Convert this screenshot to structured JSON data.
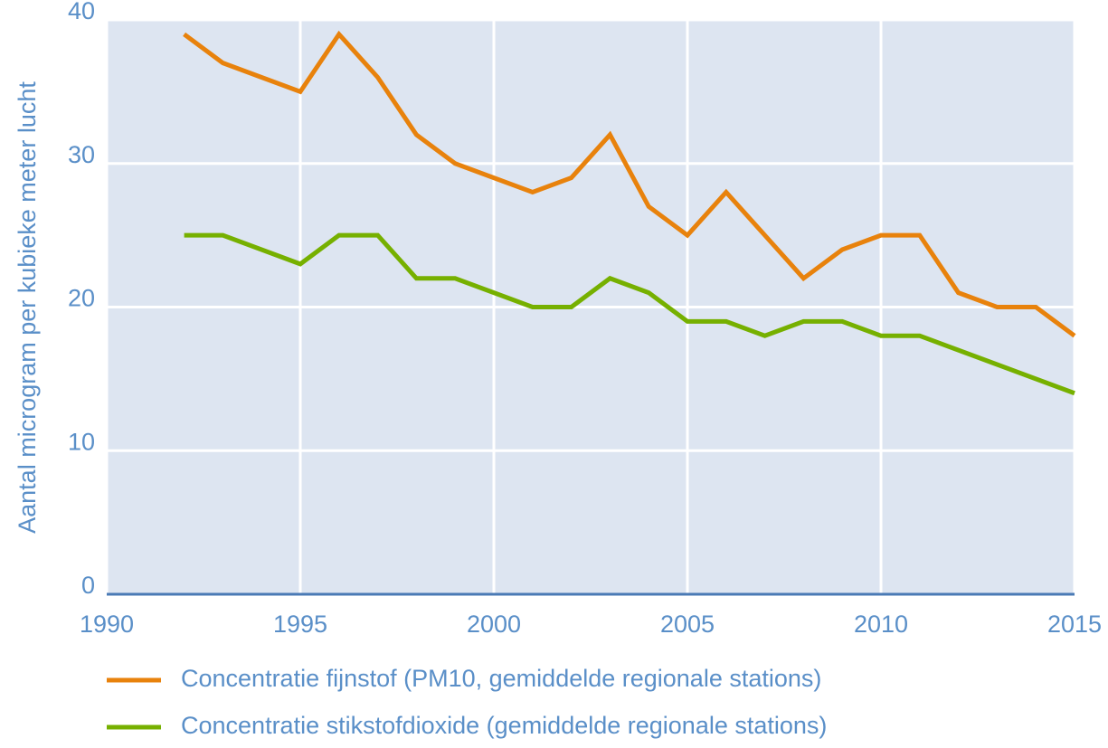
{
  "chart_data": {
    "type": "line",
    "y_label": "Aantal microgram per kubieke meter lucht",
    "x": [
      1992,
      1993,
      1994,
      1995,
      1996,
      1997,
      1998,
      1999,
      2000,
      2001,
      2002,
      2003,
      2004,
      2005,
      2006,
      2007,
      2008,
      2009,
      2010,
      2011,
      2012,
      2013,
      2014,
      2015
    ],
    "series": [
      {
        "name": "Concentratie fijnstof (PM10, gemiddelde regionale stations)",
        "color": "#e8820c",
        "values": [
          39,
          37,
          36,
          35,
          39,
          36,
          32,
          30,
          29,
          28,
          29,
          32,
          27,
          25,
          28,
          25,
          22,
          24,
          25,
          25,
          21,
          20,
          20,
          18
        ]
      },
      {
        "name": "Concentratie stikstofdioxide (gemiddelde regionale stations)",
        "color": "#76b000",
        "values": [
          25,
          25,
          24,
          23,
          25,
          25,
          22,
          22,
          21,
          20,
          20,
          22,
          21,
          19,
          19,
          18,
          19,
          19,
          18,
          18,
          17,
          16,
          15,
          14
        ]
      }
    ],
    "xlim": [
      1990,
      2015
    ],
    "xticks": [
      1990,
      1995,
      2000,
      2005,
      2010,
      2015
    ],
    "ylim": [
      0,
      40
    ],
    "yticks": [
      0,
      10,
      20,
      30,
      40
    ],
    "grid": true
  }
}
